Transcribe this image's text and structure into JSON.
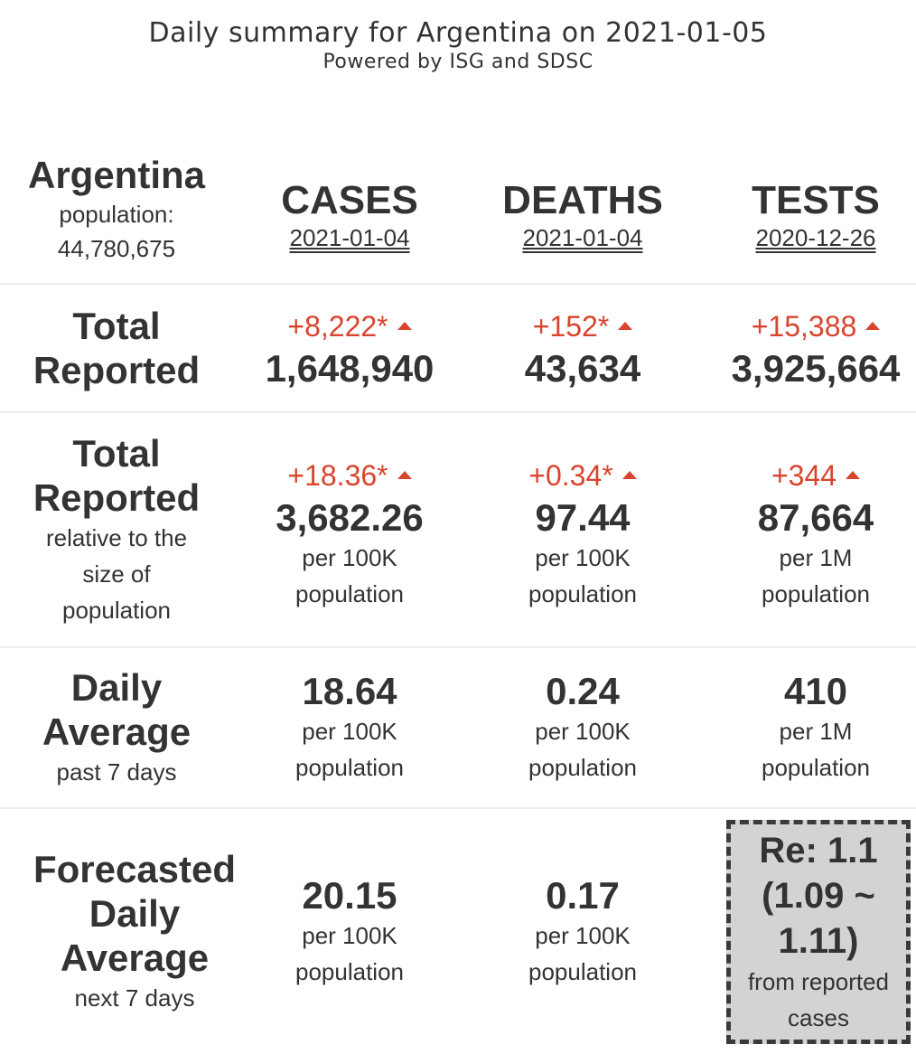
{
  "header": {
    "title": "Daily summary for Argentina on 2021-01-05",
    "subtitle": "Powered by ISG and SDSC"
  },
  "country": {
    "name": "Argentina",
    "population_label": "population:",
    "population_value": "44,780,675"
  },
  "columns": [
    {
      "name": "CASES",
      "date": "2021-01-04"
    },
    {
      "name": "DEATHS",
      "date": "2021-01-04"
    },
    {
      "name": "TESTS",
      "date": "2020-12-26"
    }
  ],
  "total_reported": {
    "label_line1": "Total",
    "label_line2": "Reported",
    "cases": {
      "delta": "+8,222*",
      "value": "1,648,940"
    },
    "deaths": {
      "delta": "+152*",
      "value": "43,634"
    },
    "tests": {
      "delta": "+15,388",
      "value": "3,925,664"
    }
  },
  "relative": {
    "label_line1": "Total",
    "label_line2": "Reported",
    "label_line3": "relative to the",
    "label_line4": "size of",
    "label_line5": "population",
    "cases": {
      "delta": "+18.36*",
      "value": "3,682.26",
      "unit": "per 100K",
      "unit2": "population"
    },
    "deaths": {
      "delta": "+0.34*",
      "value": "97.44",
      "unit": "per 100K",
      "unit2": "population"
    },
    "tests": {
      "delta": "+344",
      "value": "87,664",
      "unit": "per 1M",
      "unit2": "population"
    }
  },
  "daily_average": {
    "label_line1": "Daily",
    "label_line2": "Average",
    "label_line3": "past 7 days",
    "cases": {
      "value": "18.64",
      "unit": "per 100K",
      "unit2": "population"
    },
    "deaths": {
      "value": "0.24",
      "unit": "per 100K",
      "unit2": "population"
    },
    "tests": {
      "value": "410",
      "unit": "per 1M",
      "unit2": "population"
    }
  },
  "forecast": {
    "label_line1": "Forecasted",
    "label_line2": "Daily",
    "label_line3": "Average",
    "label_line4": "next 7 days",
    "cases": {
      "value": "20.15",
      "unit": "per 100K",
      "unit2": "population"
    },
    "deaths": {
      "value": "0.17",
      "unit": "per 100K",
      "unit2": "population"
    },
    "re": {
      "line1": "Re: 1.1",
      "line2": "(1.09 ~",
      "line3": "1.11)",
      "line4": "from reported",
      "line5": "cases"
    }
  },
  "colors": {
    "increase": "#d9442e",
    "text": "#333333",
    "re_box_bg": "#d3d3d3"
  }
}
